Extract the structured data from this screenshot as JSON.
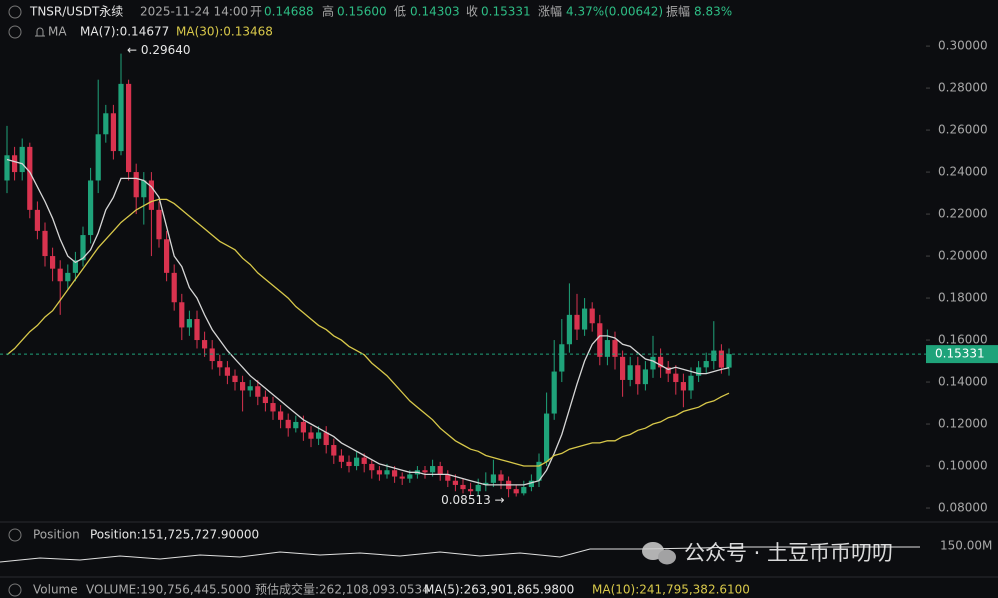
{
  "header": {
    "symbol": "TNSR/USDT永续",
    "time": "2025-11-24 14:00",
    "open_label": "开",
    "open": "0.14688",
    "high_label": "高",
    "high": "0.15600",
    "low_label": "低",
    "low": "0.14303",
    "close_label": "收",
    "close": "0.15331",
    "change_label": "涨幅",
    "change": "4.37%(0.00642)",
    "amplitude_label": "振幅",
    "amplitude": "8.83%",
    "ma_label": "MA"
  },
  "chart_data": {
    "type": "candlestick",
    "open": [
      0.236,
      0.248,
      0.24,
      0.252,
      0.222,
      0.212,
      0.2,
      0.194,
      0.188,
      0.192,
      0.198,
      0.21,
      0.236,
      0.258,
      0.268,
      0.25,
      0.282,
      0.24,
      0.228,
      0.236,
      0.222,
      0.208,
      0.192,
      0.178,
      0.166,
      0.17,
      0.16,
      0.156,
      0.15,
      0.147,
      0.143,
      0.14,
      0.136,
      0.138,
      0.133,
      0.13,
      0.126,
      0.122,
      0.118,
      0.121,
      0.116,
      0.113,
      0.116,
      0.11,
      0.105,
      0.102,
      0.1,
      0.104,
      0.101,
      0.098,
      0.096,
      0.098,
      0.095,
      0.094,
      0.096,
      0.098,
      0.097,
      0.1,
      0.096,
      0.093,
      0.091,
      0.089,
      0.088,
      0.091,
      0.092,
      0.096,
      0.093,
      0.089,
      0.087,
      0.09,
      0.093,
      0.102,
      0.125,
      0.145,
      0.158,
      0.172,
      0.165,
      0.175,
      0.168,
      0.152,
      0.16,
      0.152,
      0.141,
      0.148,
      0.139,
      0.146,
      0.152,
      0.147,
      0.144,
      0.14,
      0.136,
      0.143,
      0.147,
      0.15,
      0.155,
      0.14688
    ],
    "high": [
      0.262,
      0.252,
      0.256,
      0.254,
      0.226,
      0.216,
      0.204,
      0.198,
      0.196,
      0.202,
      0.214,
      0.242,
      0.284,
      0.272,
      0.272,
      0.2964,
      0.284,
      0.244,
      0.24,
      0.24,
      0.226,
      0.212,
      0.196,
      0.182,
      0.174,
      0.174,
      0.164,
      0.16,
      0.153,
      0.15,
      0.146,
      0.143,
      0.141,
      0.141,
      0.136,
      0.133,
      0.129,
      0.125,
      0.124,
      0.124,
      0.119,
      0.119,
      0.119,
      0.113,
      0.108,
      0.105,
      0.107,
      0.106,
      0.103,
      0.1,
      0.101,
      0.1,
      0.097,
      0.098,
      0.1,
      0.1,
      0.103,
      0.102,
      0.098,
      0.096,
      0.094,
      0.092,
      0.094,
      0.097,
      0.103,
      0.098,
      0.095,
      0.091,
      0.093,
      0.096,
      0.106,
      0.135,
      0.16,
      0.17,
      0.187,
      0.182,
      0.18,
      0.178,
      0.172,
      0.165,
      0.164,
      0.155,
      0.152,
      0.152,
      0.15,
      0.162,
      0.156,
      0.15,
      0.148,
      0.144,
      0.147,
      0.15,
      0.154,
      0.169,
      0.158,
      0.156
    ],
    "low": [
      0.23,
      0.236,
      0.236,
      0.218,
      0.208,
      0.195,
      0.188,
      0.172,
      0.184,
      0.188,
      0.195,
      0.206,
      0.23,
      0.254,
      0.246,
      0.248,
      0.236,
      0.22,
      0.215,
      0.2,
      0.204,
      0.188,
      0.174,
      0.16,
      0.162,
      0.156,
      0.152,
      0.146,
      0.143,
      0.139,
      0.136,
      0.126,
      0.133,
      0.129,
      0.126,
      0.122,
      0.118,
      0.114,
      0.116,
      0.112,
      0.109,
      0.11,
      0.106,
      0.101,
      0.099,
      0.097,
      0.098,
      0.097,
      0.094,
      0.093,
      0.094,
      0.092,
      0.091,
      0.092,
      0.094,
      0.094,
      0.095,
      0.093,
      0.09,
      0.088,
      0.087,
      0.086,
      0.086,
      0.088,
      0.09,
      0.089,
      0.08513,
      0.0855,
      0.086,
      0.088,
      0.09,
      0.1,
      0.122,
      0.14,
      0.154,
      0.16,
      0.162,
      0.164,
      0.148,
      0.148,
      0.146,
      0.133,
      0.138,
      0.134,
      0.136,
      0.142,
      0.142,
      0.14,
      0.134,
      0.128,
      0.132,
      0.14,
      0.144,
      0.146,
      0.144,
      0.14303
    ],
    "close": [
      0.248,
      0.24,
      0.252,
      0.222,
      0.212,
      0.2,
      0.194,
      0.188,
      0.192,
      0.198,
      0.21,
      0.236,
      0.258,
      0.268,
      0.25,
      0.282,
      0.24,
      0.228,
      0.236,
      0.222,
      0.208,
      0.192,
      0.178,
      0.166,
      0.17,
      0.16,
      0.156,
      0.15,
      0.147,
      0.143,
      0.14,
      0.136,
      0.138,
      0.133,
      0.13,
      0.126,
      0.122,
      0.118,
      0.121,
      0.116,
      0.113,
      0.116,
      0.11,
      0.105,
      0.102,
      0.1,
      0.104,
      0.101,
      0.098,
      0.096,
      0.098,
      0.095,
      0.094,
      0.096,
      0.098,
      0.097,
      0.1,
      0.096,
      0.093,
      0.091,
      0.089,
      0.088,
      0.091,
      0.092,
      0.096,
      0.093,
      0.089,
      0.087,
      0.09,
      0.093,
      0.102,
      0.125,
      0.145,
      0.158,
      0.172,
      0.165,
      0.175,
      0.168,
      0.152,
      0.16,
      0.152,
      0.141,
      0.148,
      0.139,
      0.146,
      0.152,
      0.147,
      0.144,
      0.14,
      0.136,
      0.143,
      0.147,
      0.15,
      0.155,
      0.14688,
      0.15331
    ],
    "up_color": "#1fa37a",
    "down_color": "#d9334f",
    "series": [
      {
        "name": "MA(7):0.14677",
        "color": "#d6d6d6",
        "values": [
          0.246,
          0.245,
          0.244,
          0.24,
          0.233,
          0.226,
          0.218,
          0.208,
          0.2,
          0.197,
          0.199,
          0.203,
          0.211,
          0.222,
          0.228,
          0.237,
          0.237,
          0.237,
          0.236,
          0.233,
          0.228,
          0.214,
          0.2,
          0.195,
          0.185,
          0.18,
          0.172,
          0.165,
          0.16,
          0.155,
          0.151,
          0.147,
          0.143,
          0.14,
          0.137,
          0.134,
          0.131,
          0.128,
          0.125,
          0.122,
          0.12,
          0.118,
          0.116,
          0.114,
          0.111,
          0.109,
          0.107,
          0.105,
          0.103,
          0.101,
          0.1,
          0.099,
          0.098,
          0.097,
          0.097,
          0.096,
          0.096,
          0.096,
          0.096,
          0.095,
          0.094,
          0.093,
          0.092,
          0.091,
          0.091,
          0.091,
          0.091,
          0.091,
          0.091,
          0.092,
          0.093,
          0.098,
          0.106,
          0.115,
          0.127,
          0.139,
          0.15,
          0.158,
          0.162,
          0.162,
          0.161,
          0.158,
          0.157,
          0.154,
          0.151,
          0.15,
          0.148,
          0.146,
          0.147,
          0.146,
          0.145,
          0.144,
          0.144,
          0.145,
          0.146,
          0.14677
        ]
      },
      {
        "name": "MA(30):0.13468",
        "color": "#d8c84a",
        "values": [
          0.153,
          0.156,
          0.16,
          0.164,
          0.167,
          0.171,
          0.174,
          0.179,
          0.184,
          0.189,
          0.194,
          0.199,
          0.204,
          0.208,
          0.212,
          0.216,
          0.219,
          0.222,
          0.224,
          0.226,
          0.227,
          0.227,
          0.225,
          0.222,
          0.219,
          0.216,
          0.213,
          0.21,
          0.207,
          0.205,
          0.203,
          0.199,
          0.196,
          0.192,
          0.189,
          0.186,
          0.183,
          0.18,
          0.176,
          0.173,
          0.17,
          0.167,
          0.165,
          0.162,
          0.16,
          0.157,
          0.155,
          0.153,
          0.149,
          0.146,
          0.143,
          0.139,
          0.135,
          0.131,
          0.128,
          0.125,
          0.122,
          0.118,
          0.115,
          0.112,
          0.11,
          0.108,
          0.107,
          0.105,
          0.104,
          0.103,
          0.102,
          0.101,
          0.1,
          0.1,
          0.1,
          0.102,
          0.105,
          0.106,
          0.108,
          0.109,
          0.11,
          0.111,
          0.111,
          0.112,
          0.112,
          0.114,
          0.115,
          0.117,
          0.118,
          0.12,
          0.121,
          0.123,
          0.124,
          0.126,
          0.127,
          0.128,
          0.13,
          0.131,
          0.133,
          0.13468
        ]
      }
    ],
    "ylim": [
      0.0743,
      0.3029
    ],
    "yticks": [
      {
        "value": 0.08,
        "label": "0.08000"
      },
      {
        "value": 0.1,
        "label": "0.10000"
      },
      {
        "value": 0.12,
        "label": "0.12000"
      },
      {
        "value": 0.14,
        "label": "0.14000"
      },
      {
        "value": 0.16,
        "label": "0.16000"
      },
      {
        "value": 0.18,
        "label": "0.18000"
      },
      {
        "value": 0.2,
        "label": "0.20000"
      },
      {
        "value": 0.22,
        "label": "0.22000"
      },
      {
        "value": 0.24,
        "label": "0.24000"
      },
      {
        "value": 0.26,
        "label": "0.26000"
      },
      {
        "value": 0.28,
        "label": "0.28000"
      },
      {
        "value": 0.3,
        "label": "0.30000"
      }
    ],
    "grid": false,
    "current_price": 0.15331,
    "max_label": "← 0.29640",
    "min_label": "0.08513 →"
  },
  "position": {
    "title": "Position",
    "value": "Position:151,725,727.90000",
    "axis_label": "150.00M"
  },
  "volume": {
    "title": "Volume",
    "value": "VOLUME:190,756,445.5000",
    "estimate": "预估成交量:262,108,093.0534",
    "ma5": "MA(5):263,901,865.9800",
    "ma10": "MA(10):241,795,382.6100"
  },
  "watermark": "公众号 · 土豆币币叨叨"
}
